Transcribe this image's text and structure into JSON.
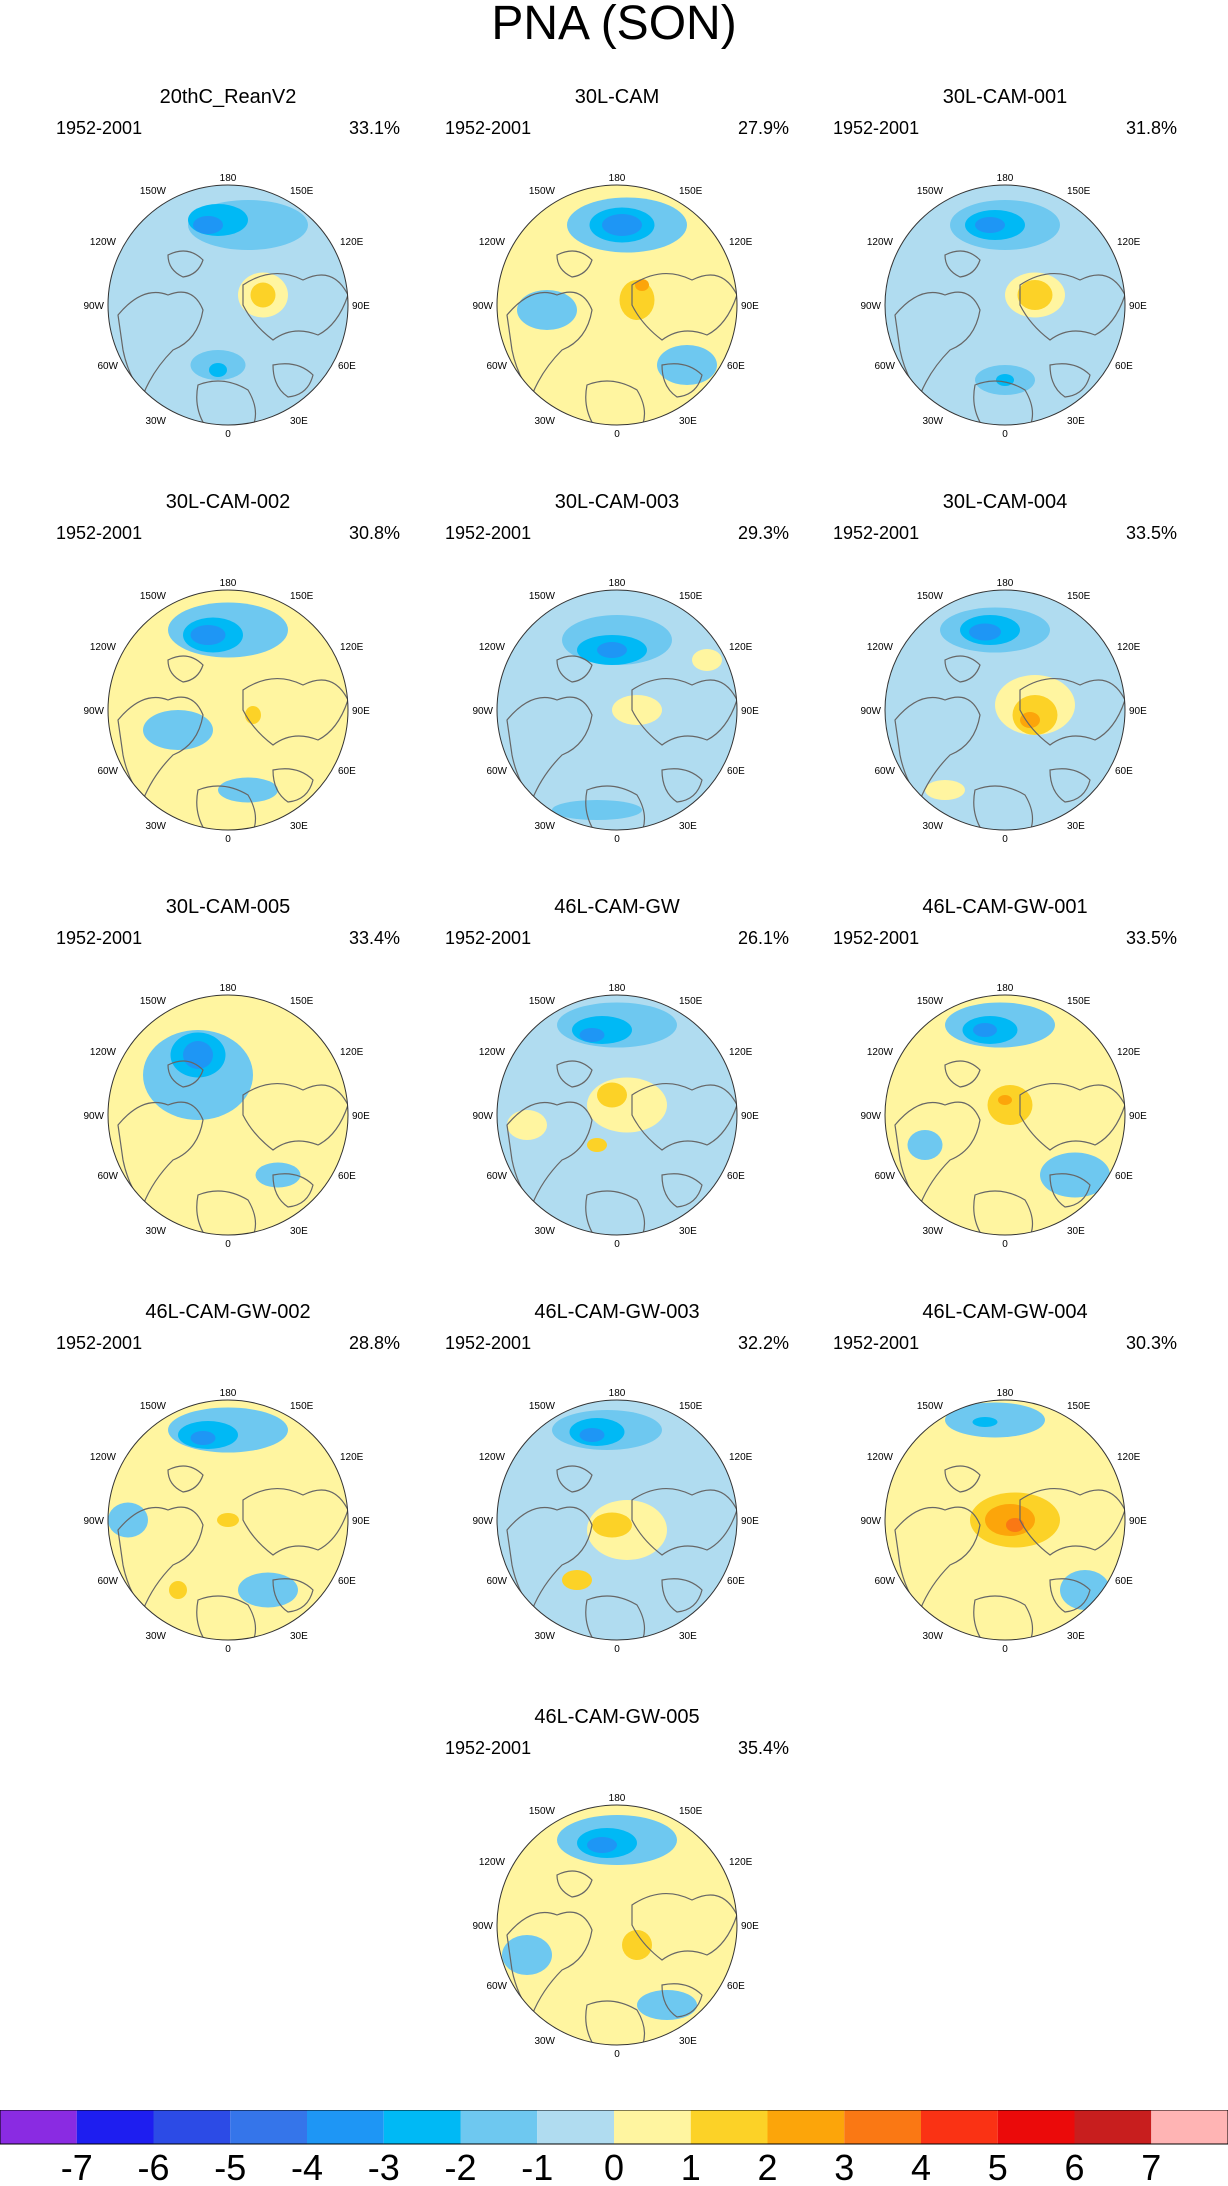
{
  "figure_title": "PNA (SON)",
  "lon_labels": {
    "n": "180",
    "nne": "150E",
    "nnw": "150W",
    "wnw": "120W",
    "ene": "120E",
    "w": "90W",
    "e": "90E",
    "wsw": "60W",
    "ese": "60E",
    "ssw": "30W",
    "sse": "30E",
    "s": "0"
  },
  "panels": [
    {
      "title": "20thC_ReanV2",
      "period": "1952-2001",
      "percent": "33.1%"
    },
    {
      "title": "30L-CAM",
      "period": "1952-2001",
      "percent": "27.9%"
    },
    {
      "title": "30L-CAM-001",
      "period": "1952-2001",
      "percent": "31.8%"
    },
    {
      "title": "30L-CAM-002",
      "period": "1952-2001",
      "percent": "30.8%"
    },
    {
      "title": "30L-CAM-003",
      "period": "1952-2001",
      "percent": "29.3%"
    },
    {
      "title": "30L-CAM-004",
      "period": "1952-2001",
      "percent": "33.5%"
    },
    {
      "title": "30L-CAM-005",
      "period": "1952-2001",
      "percent": "33.4%"
    },
    {
      "title": "46L-CAM-GW",
      "period": "1952-2001",
      "percent": "26.1%"
    },
    {
      "title": "46L-CAM-GW-001",
      "period": "1952-2001",
      "percent": "33.5%"
    },
    {
      "title": "46L-CAM-GW-002",
      "period": "1952-2001",
      "percent": "28.8%"
    },
    {
      "title": "46L-CAM-GW-003",
      "period": "1952-2001",
      "percent": "32.2%"
    },
    {
      "title": "46L-CAM-GW-004",
      "period": "1952-2001",
      "percent": "30.3%"
    },
    {
      "title": "46L-CAM-GW-005",
      "period": "1952-2001",
      "percent": "35.4%"
    }
  ],
  "colorbar": {
    "labels": [
      "-7",
      "-6",
      "-5",
      "-4",
      "-3",
      "-2",
      "-1",
      "0",
      "1",
      "2",
      "3",
      "4",
      "5",
      "6",
      "7"
    ],
    "colors": [
      "#8a2be2",
      "#1e1ef0",
      "#2c4be6",
      "#3575ea",
      "#1e96f5",
      "#00b9f5",
      "#6ec8f0",
      "#b0dcf0",
      "#fff5a0",
      "#fcd227",
      "#fca50a",
      "#fa7814",
      "#fa3214",
      "#eb0a0a",
      "#c81e1e",
      "#ffb4b4"
    ]
  },
  "colors": {
    "land_outline": "#666666",
    "map_border": "#333333",
    "light_blue": "#b0dcf0",
    "light_yellow": "#fff5a0"
  }
}
